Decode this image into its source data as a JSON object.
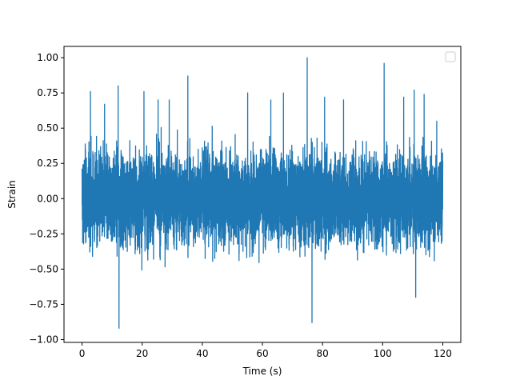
{
  "chart_data": {
    "type": "line",
    "title": "",
    "xlabel": "Time (s)",
    "ylabel": "Strain",
    "xlim": [
      -6,
      126
    ],
    "ylim": [
      -1.02,
      1.08
    ],
    "x_ticks": [
      0,
      20,
      40,
      60,
      80,
      100,
      120
    ],
    "x_tick_labels": [
      "0",
      "20",
      "40",
      "60",
      "80",
      "100",
      "120"
    ],
    "y_ticks": [
      -1.0,
      -0.75,
      -0.5,
      -0.25,
      0.0,
      0.25,
      0.5,
      0.75,
      1.0
    ],
    "y_tick_labels": [
      "−1.00",
      "−0.75",
      "−0.50",
      "−0.25",
      "0.00",
      "0.25",
      "0.50",
      "0.75",
      "1.00"
    ],
    "grid": false,
    "legend": {
      "placement": "top-right",
      "entries": []
    },
    "series": [
      {
        "color": "#1f77b4",
        "signal": {
          "description": "dense noisy strain time series",
          "x_range": [
            0,
            120
          ],
          "typical_amplitude_band": [
            -0.5,
            0.5
          ],
          "peaks": [
            [
              2.8,
              0.76
            ],
            [
              7.5,
              0.67
            ],
            [
              12.0,
              0.8
            ],
            [
              12.3,
              -0.92
            ],
            [
              20.6,
              0.76
            ],
            [
              25.3,
              0.7
            ],
            [
              29.0,
              0.7
            ],
            [
              35.2,
              0.87
            ],
            [
              55.1,
              0.75
            ],
            [
              62.8,
              0.7
            ],
            [
              67.0,
              0.75
            ],
            [
              74.9,
              1.0
            ],
            [
              76.5,
              -0.88
            ],
            [
              80.7,
              0.72
            ],
            [
              87.0,
              0.7
            ],
            [
              100.5,
              0.96
            ],
            [
              107.0,
              0.72
            ],
            [
              110.5,
              0.77
            ],
            [
              111.0,
              -0.7
            ],
            [
              113.8,
              0.74
            ],
            [
              118.0,
              0.55
            ],
            [
              120.0,
              0.27
            ]
          ]
        }
      }
    ]
  }
}
